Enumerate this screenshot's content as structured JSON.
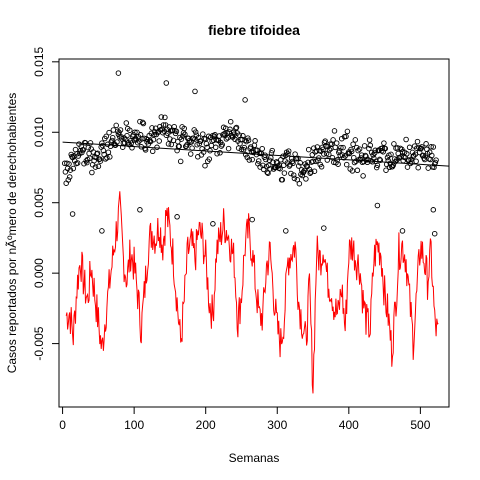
{
  "chart_data": {
    "type": "scatter",
    "title": "fiebre tifoidea",
    "xlabel": "Semanas",
    "ylabel": "Casos reportados por nÃºmero de derechohabientes",
    "xlim": [
      -5,
      540
    ],
    "ylim": [
      -0.0095,
      0.0152
    ],
    "x_ticks": [
      0,
      100,
      200,
      300,
      400,
      500
    ],
    "x_tick_labels": [
      "0",
      "100",
      "200",
      "300",
      "400",
      "500"
    ],
    "y_ticks": [
      -0.005,
      0.0,
      0.005,
      0.01,
      0.015
    ],
    "y_tick_labels": [
      "-0.005",
      "0.000",
      "0.005",
      "0.010",
      "0.015"
    ],
    "grid": false,
    "colors": {
      "points": "#000000",
      "trend": "#000000",
      "residuals": "#ff0000"
    },
    "trend": {
      "x": [
        0,
        540
      ],
      "y": [
        0.0093,
        0.0076
      ]
    },
    "point_anchors": {
      "x": [
        0,
        20,
        40,
        60,
        80,
        100,
        120,
        140,
        160,
        180,
        200,
        220,
        240,
        260,
        280,
        300,
        320,
        340,
        360,
        380,
        400,
        420,
        440,
        460,
        480,
        500,
        520
      ],
      "y": [
        0.0068,
        0.0085,
        0.0084,
        0.0088,
        0.0098,
        0.0095,
        0.0096,
        0.0102,
        0.0092,
        0.0095,
        0.0088,
        0.0095,
        0.0098,
        0.0088,
        0.008,
        0.0075,
        0.0076,
        0.0075,
        0.0082,
        0.0086,
        0.0088,
        0.0082,
        0.0084,
        0.0082,
        0.0084,
        0.0086,
        0.0078
      ]
    },
    "point_spread": 0.0016,
    "point_count": 520,
    "notable_points": [
      {
        "x": 78,
        "y": 0.0142
      },
      {
        "x": 145,
        "y": 0.0135
      },
      {
        "x": 185,
        "y": 0.0129
      },
      {
        "x": 255,
        "y": 0.0123
      },
      {
        "x": 14,
        "y": 0.0042
      },
      {
        "x": 55,
        "y": 0.003
      },
      {
        "x": 108,
        "y": 0.0045
      },
      {
        "x": 160,
        "y": 0.004
      },
      {
        "x": 210,
        "y": 0.0035
      },
      {
        "x": 265,
        "y": 0.0038
      },
      {
        "x": 312,
        "y": 0.003
      },
      {
        "x": 365,
        "y": 0.0032
      },
      {
        "x": 440,
        "y": 0.0048
      },
      {
        "x": 475,
        "y": 0.003
      },
      {
        "x": 520,
        "y": 0.0028
      },
      {
        "x": 518,
        "y": 0.0045
      }
    ],
    "residual_anchors": {
      "x": [
        5,
        10,
        15,
        20,
        25,
        30,
        35,
        40,
        45,
        50,
        55,
        60,
        65,
        70,
        75,
        80,
        85,
        90,
        95,
        100,
        105,
        110,
        115,
        120,
        125,
        130,
        135,
        140,
        145,
        150,
        155,
        160,
        165,
        170,
        175,
        180,
        185,
        190,
        195,
        200,
        205,
        210,
        215,
        220,
        225,
        230,
        235,
        240,
        245,
        250,
        255,
        260,
        265,
        270,
        275,
        280,
        285,
        290,
        295,
        300,
        305,
        310,
        315,
        320,
        325,
        330,
        335,
        340,
        345,
        350,
        355,
        360,
        365,
        370,
        375,
        380,
        385,
        390,
        395,
        400,
        405,
        410,
        415,
        420,
        425,
        430,
        435,
        440,
        445,
        450,
        455,
        460,
        465,
        470,
        475,
        480,
        485,
        490,
        495,
        500,
        505,
        510,
        515,
        520,
        525
      ],
      "y": [
        -0.003,
        -0.0028,
        -0.0045,
        -0.001,
        0.001,
        -0.0008,
        -0.002,
        0.0005,
        -0.0015,
        -0.0035,
        -0.0055,
        -0.003,
        -0.001,
        0.001,
        0.003,
        0.0045,
        0.001,
        -0.0005,
        0.0015,
        0.0005,
        -0.0015,
        -0.004,
        -0.001,
        0.002,
        0.003,
        0.0025,
        0.0035,
        0.002,
        0.0042,
        0.003,
        0.001,
        -0.002,
        -0.005,
        -0.002,
        0.0015,
        0.002,
        0.001,
        0.003,
        0.0025,
        0.001,
        -0.002,
        -0.003,
        0.0015,
        0.0025,
        0.0035,
        0.003,
        0.002,
        0.0008,
        -0.0035,
        -0.0015,
        0.002,
        0.003,
        0.0015,
        -0.001,
        -0.0032,
        -0.003,
        0.0005,
        0.0015,
        -0.0015,
        -0.004,
        -0.005,
        -0.003,
        0.001,
        0.0015,
        0.002,
        -0.002,
        -0.0035,
        -0.005,
        -0.001,
        -0.008,
        0.0015,
        0.001,
        0.002,
        -0.0005,
        -0.001,
        -0.0025,
        -0.003,
        -0.001,
        -0.004,
        0.0015,
        0.002,
        0.001,
        0.0005,
        -0.002,
        -0.0035,
        -0.004,
        0.001,
        0.002,
        0.0015,
        -0.0015,
        -0.003,
        -0.0055,
        -0.0025,
        0.0015,
        0.002,
        0.001,
        -0.002,
        -0.0048,
        -0.0015,
        0.002,
        0.001,
        -0.0005,
        0.0015,
        -0.0035,
        -0.0045
      ]
    }
  }
}
